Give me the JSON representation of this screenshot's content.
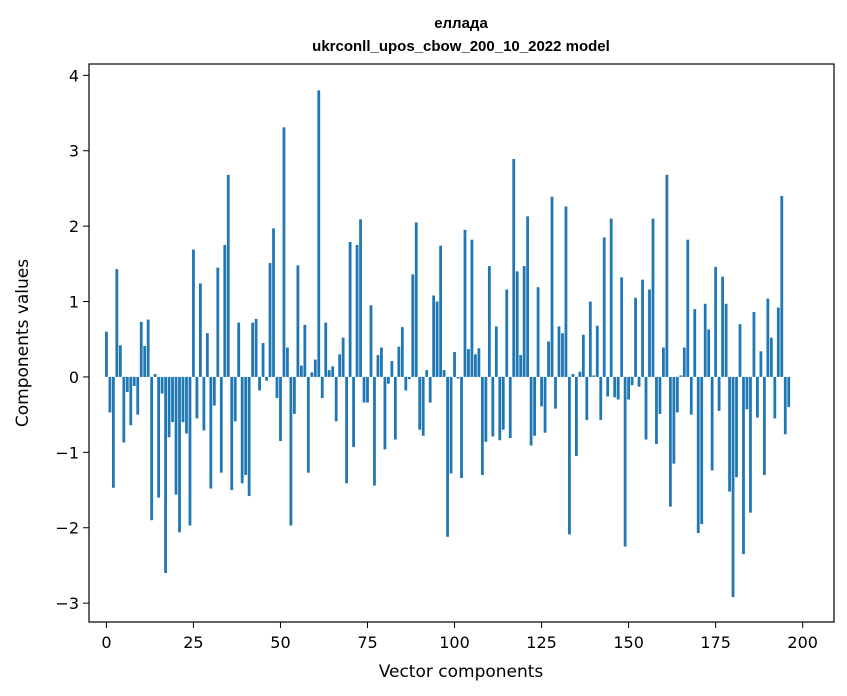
{
  "chart_data": {
    "type": "bar",
    "title": "еллада",
    "subtitle": "ukrconll_upos_cbow_200_10_2022 model",
    "xlabel": "Vector components",
    "ylabel": "Components values",
    "xlim": [
      -5,
      209
    ],
    "ylim": [
      -3.25,
      4.15
    ],
    "xticks": [
      0,
      25,
      50,
      75,
      100,
      125,
      150,
      175,
      200
    ],
    "xtick_labels": [
      "0",
      "25",
      "50",
      "75",
      "100",
      "125",
      "150",
      "175",
      "200"
    ],
    "yticks": [
      -3,
      -2,
      -1,
      0,
      1,
      2,
      3,
      4
    ],
    "ytick_labels": [
      "−3",
      "−2",
      "−1",
      "0",
      "1",
      "2",
      "3",
      "4"
    ],
    "grid": false,
    "bar_color": "#1f77b4",
    "series": [
      {
        "values": [
          0.6,
          -0.47,
          -1.47,
          1.43,
          0.42,
          -0.87,
          -0.2,
          -0.64,
          -0.12,
          -0.5,
          0.73,
          0.41,
          0.76,
          -1.9,
          0.04,
          -1.6,
          -0.22,
          -2.6,
          -0.8,
          -0.6,
          -1.56,
          -2.06,
          -0.6,
          -0.75,
          -1.97,
          1.69,
          -0.55,
          1.24,
          -0.71,
          0.58,
          -1.48,
          -0.38,
          1.45,
          -1.27,
          1.75,
          2.68,
          -1.5,
          -0.59,
          0.72,
          -1.41,
          -1.3,
          -1.58,
          0.72,
          0.77,
          -0.18,
          0.45,
          -0.05,
          1.51,
          1.97,
          -0.28,
          -0.85,
          3.31,
          0.39,
          -1.97,
          -0.49,
          1.48,
          0.15,
          0.69,
          -1.27,
          0.06,
          0.23,
          3.8,
          -0.28,
          0.72,
          0.09,
          0.14,
          -0.59,
          0.3,
          0.52,
          -1.41,
          1.79,
          -0.93,
          1.75,
          2.09,
          -0.34,
          -0.34,
          0.95,
          -1.44,
          0.29,
          0.39,
          -0.96,
          -0.09,
          0.21,
          -0.83,
          0.4,
          0.66,
          -0.18,
          -0.03,
          1.36,
          2.05,
          -0.7,
          -0.78,
          0.09,
          -0.34,
          1.08,
          1.0,
          1.74,
          0.09,
          -2.12,
          -1.28,
          0.33,
          -0.02,
          -1.34,
          1.95,
          0.37,
          1.82,
          0.3,
          0.38,
          -1.3,
          -0.86,
          1.47,
          -0.79,
          0.67,
          -0.84,
          -0.7,
          1.16,
          -0.81,
          2.89,
          1.4,
          0.29,
          1.47,
          2.13,
          -0.91,
          -0.78,
          1.19,
          -0.39,
          -0.74,
          0.47,
          2.39,
          -0.42,
          0.67,
          0.58,
          2.26,
          -2.09,
          0.04,
          -1.05,
          0.07,
          0.56,
          -0.57,
          1.0,
          0.02,
          0.68,
          -0.57,
          1.85,
          -0.26,
          2.1,
          -0.27,
          -0.3,
          1.32,
          -2.25,
          -0.3,
          -0.11,
          1.05,
          -0.13,
          1.29,
          -0.83,
          1.16,
          2.1,
          -0.89,
          -0.49,
          0.39,
          2.68,
          -1.72,
          -1.15,
          -0.47,
          0.02,
          0.39,
          1.82,
          -0.5,
          0.9,
          -2.07,
          -1.95,
          0.97,
          0.63,
          -1.24,
          1.46,
          -0.45,
          1.33,
          0.97,
          -1.52,
          -2.92,
          -1.33,
          0.7,
          -2.35,
          -0.43,
          -1.8,
          0.86,
          -0.54,
          0.34,
          -1.3,
          1.04,
          0.52,
          -0.55,
          0.92,
          2.4,
          -0.76,
          -0.4
        ]
      }
    ]
  }
}
